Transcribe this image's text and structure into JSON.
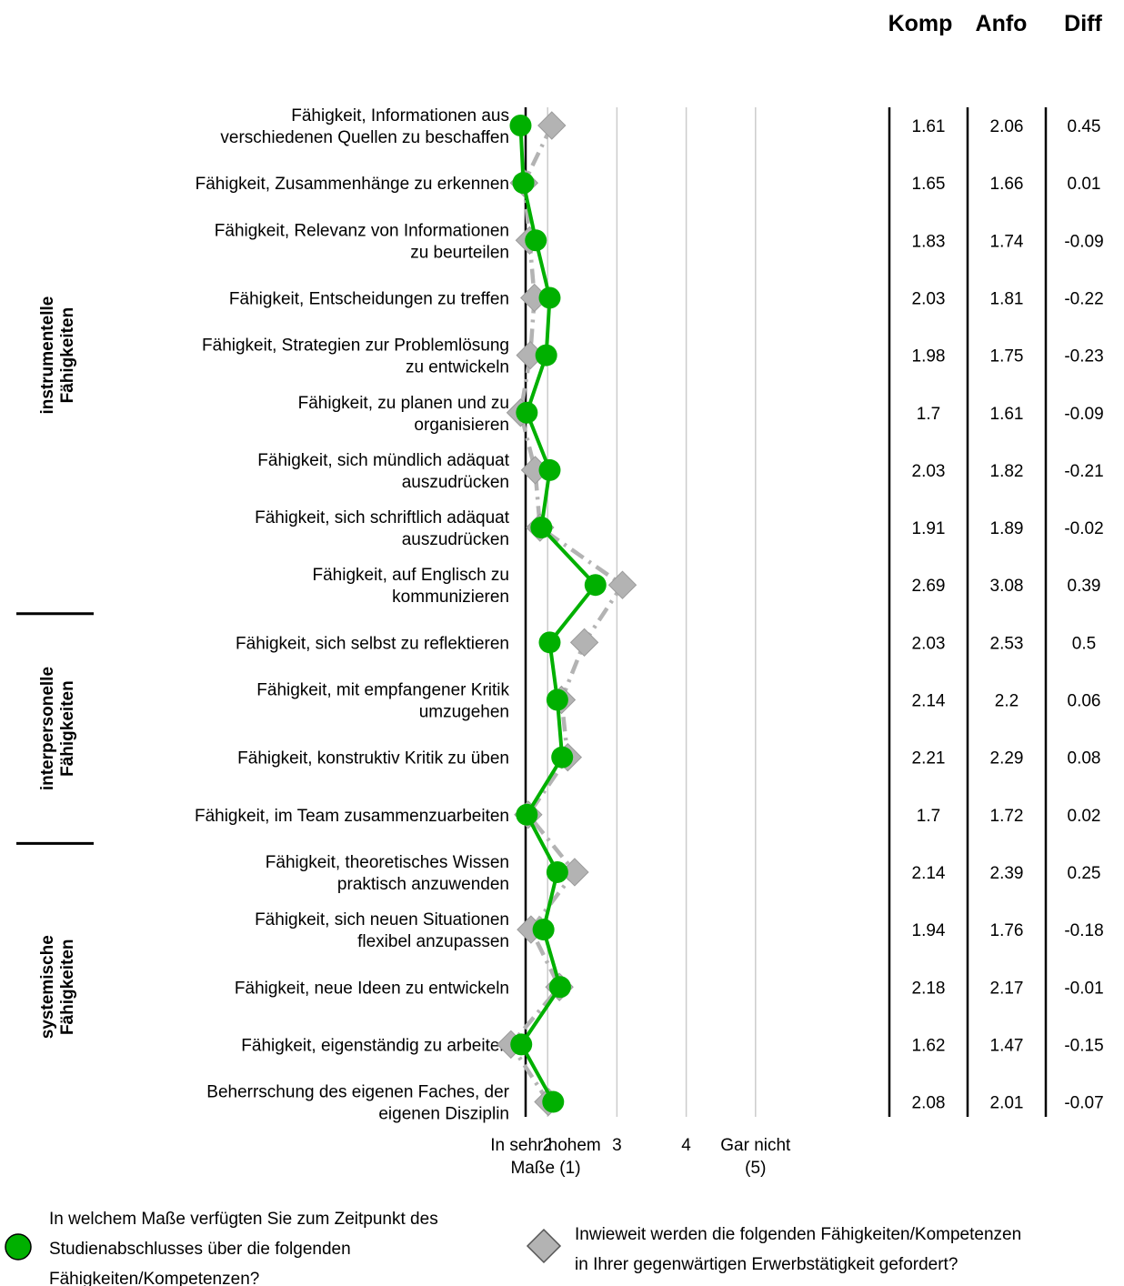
{
  "chart_data": {
    "type": "line",
    "orientation": "horizontal",
    "columns": {
      "komp": "Komp",
      "anfo": "Anfo",
      "diff": "Diff"
    },
    "x_axis": {
      "range": [
        1,
        5
      ],
      "ticks": [
        {
          "value": 1,
          "lines": [
            "In sehr hohem",
            "Maße (1)"
          ]
        },
        {
          "value": 2,
          "lines": [
            "2"
          ]
        },
        {
          "value": 3,
          "lines": [
            "3"
          ]
        },
        {
          "value": 4,
          "lines": [
            "4"
          ]
        },
        {
          "value": 5,
          "lines": [
            "Gar nicht",
            "(5)"
          ]
        }
      ],
      "grid": true
    },
    "groups": [
      {
        "lines": [
          "instrumentelle",
          "Fähigkeiten"
        ],
        "from": 0,
        "to": 8
      },
      {
        "lines": [
          "interpersonelle",
          "Fähigkeiten"
        ],
        "from": 9,
        "to": 12
      },
      {
        "lines": [
          "systemische",
          "Fähigkeiten"
        ],
        "from": 13,
        "to": 17
      }
    ],
    "items": [
      {
        "label": [
          "Fähigkeit, Informationen aus",
          "verschiedenen Quellen zu beschaffen"
        ],
        "komp": 1.61,
        "anfo": 2.06,
        "diff": "0.45"
      },
      {
        "label": [
          "Fähigkeit, Zusammenhänge zu erkennen"
        ],
        "komp": 1.65,
        "anfo": 1.66,
        "diff": "0.01"
      },
      {
        "label": [
          "Fähigkeit, Relevanz von Informationen",
          "zu beurteilen"
        ],
        "komp": 1.83,
        "anfo": 1.74,
        "diff": "-0.09"
      },
      {
        "label": [
          "Fähigkeit, Entscheidungen zu treffen"
        ],
        "komp": 2.03,
        "anfo": 1.81,
        "diff": "-0.22"
      },
      {
        "label": [
          "Fähigkeit, Strategien zur Problemlösung",
          "zu entwickeln"
        ],
        "komp": 1.98,
        "anfo": 1.75,
        "diff": "-0.23"
      },
      {
        "label": [
          "Fähigkeit, zu planen und zu",
          "organisieren"
        ],
        "komp": 1.7,
        "anfo": 1.61,
        "diff": "-0.09"
      },
      {
        "label": [
          "Fähigkeit, sich mündlich adäquat",
          "auszudrücken"
        ],
        "komp": 2.03,
        "anfo": 1.82,
        "diff": "-0.21"
      },
      {
        "label": [
          "Fähigkeit, sich schriftlich adäquat",
          "auszudrücken"
        ],
        "komp": 1.91,
        "anfo": 1.89,
        "diff": "-0.02"
      },
      {
        "label": [
          "Fähigkeit, auf Englisch zu",
          "kommunizieren"
        ],
        "komp": 2.69,
        "anfo": 3.08,
        "diff": "0.39"
      },
      {
        "label": [
          "Fähigkeit, sich selbst zu reflektieren"
        ],
        "komp": 2.03,
        "anfo": 2.53,
        "diff": "0.5"
      },
      {
        "label": [
          "Fähigkeit, mit empfangener Kritik",
          "umzugehen"
        ],
        "komp": 2.14,
        "anfo": 2.2,
        "diff": "0.06"
      },
      {
        "label": [
          "Fähigkeit, konstruktiv Kritik zu üben"
        ],
        "komp": 2.21,
        "anfo": 2.29,
        "diff": "0.08"
      },
      {
        "label": [
          "Fähigkeit, im Team zusammenzuarbeiten"
        ],
        "komp": 1.7,
        "anfo": 1.72,
        "diff": "0.02"
      },
      {
        "label": [
          "Fähigkeit, theoretisches Wissen",
          "praktisch anzuwenden"
        ],
        "komp": 2.14,
        "anfo": 2.39,
        "diff": "0.25"
      },
      {
        "label": [
          "Fähigkeit, sich neuen Situationen",
          "flexibel anzupassen"
        ],
        "komp": 1.94,
        "anfo": 1.76,
        "diff": "-0.18"
      },
      {
        "label": [
          "Fähigkeit, neue Ideen zu entwickeln"
        ],
        "komp": 2.18,
        "anfo": 2.17,
        "diff": "-0.01"
      },
      {
        "label": [
          "Fähigkeit, eigenständig zu arbeiten"
        ],
        "komp": 1.62,
        "anfo": 1.47,
        "diff": "-0.15"
      },
      {
        "label": [
          "Beherrschung des eigenen Faches, der",
          "eigenen Disziplin"
        ],
        "komp": 2.08,
        "anfo": 2.01,
        "diff": "-0.07"
      }
    ],
    "series": [
      {
        "key": "komp",
        "marker": "circle",
        "line": "solid",
        "color": "#00b000",
        "legend": [
          "In welchem Maße verfügten Sie zum Zeitpunkt des",
          "Studienabschlusses über die folgenden",
          "Fähigkeiten/Kompetenzen?"
        ]
      },
      {
        "key": "anfo",
        "marker": "diamond",
        "line": "dashdot",
        "color": "#b3b3b3",
        "legend": [
          "Inwieweit werden die folgenden Fähigkeiten/Kompetenzen",
          "in Ihrer gegenwärtigen Erwerbstätigkeit gefordert?"
        ]
      }
    ],
    "colors": {
      "positive_diff": "#1a7a1a",
      "negative_diff": "#e00000",
      "grid": "#cccccc"
    }
  }
}
